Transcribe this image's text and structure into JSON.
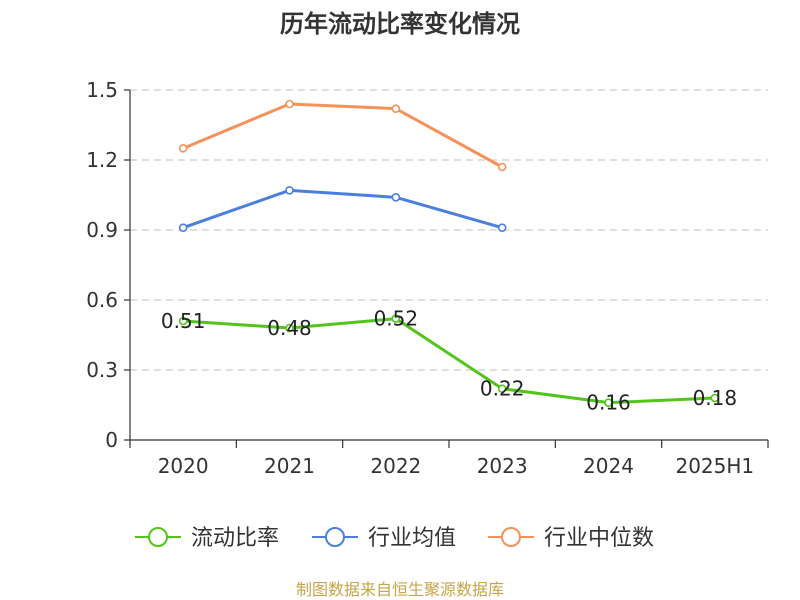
{
  "chart_data": {
    "type": "line",
    "title": "历年流动比率变化情况",
    "categories": [
      "2020",
      "2021",
      "2022",
      "2023",
      "2024",
      "2025H1"
    ],
    "yticks": [
      "0",
      "0.3",
      "0.6",
      "0.9",
      "1.2",
      "1.5"
    ],
    "ylim": [
      0,
      1.5
    ],
    "grid": true,
    "legend_position": "bottom",
    "series": [
      {
        "name": "流动比率",
        "color": "#52c41a",
        "values": [
          0.51,
          0.48,
          0.52,
          0.22,
          0.16,
          0.18
        ],
        "labels": [
          "0.51",
          "0.48",
          "0.52",
          "0.22",
          "0.16",
          "0.18"
        ]
      },
      {
        "name": "行业均值",
        "color": "#4a7fe0",
        "values": [
          0.91,
          1.07,
          1.04,
          0.91,
          null,
          null
        ]
      },
      {
        "name": "行业中位数",
        "color": "#f5925a",
        "values": [
          1.25,
          1.44,
          1.42,
          1.17,
          null,
          null
        ]
      }
    ]
  },
  "source": "制图数据来自恒生聚源数据库"
}
